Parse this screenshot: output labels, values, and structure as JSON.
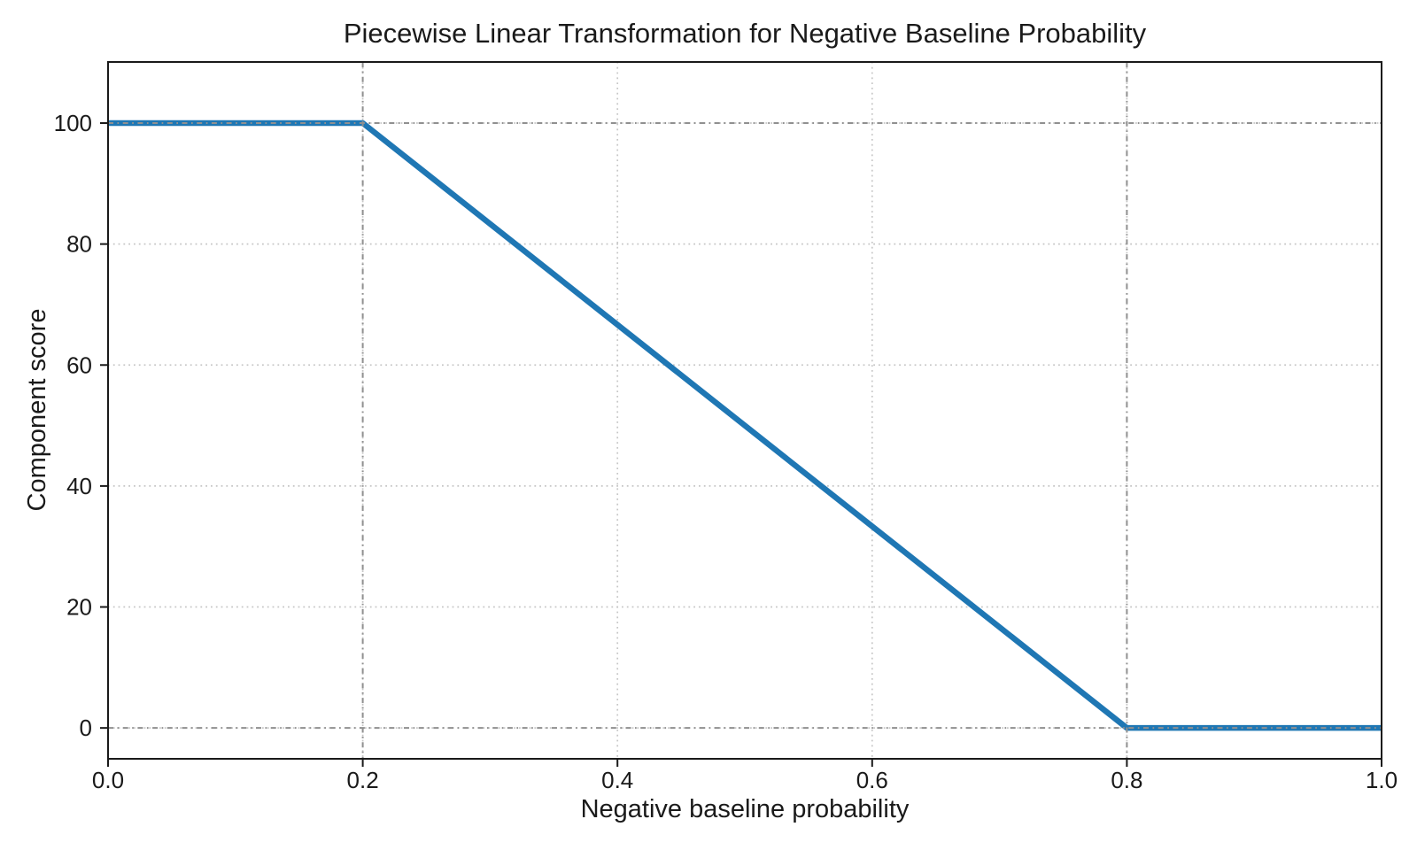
{
  "figure": {
    "background_color": "#ffffff"
  },
  "chart_data": {
    "type": "line",
    "title": "Piecewise Linear Transformation for Negative Baseline Probability",
    "xlabel": "Negative baseline probability",
    "ylabel": "Component score",
    "xlim": [
      0.0,
      1.0
    ],
    "ylim": [
      -5.1,
      110.1
    ],
    "x_ticks": {
      "values": [
        0.0,
        0.2,
        0.4,
        0.6,
        0.8,
        1.0
      ],
      "labels": [
        "0.0",
        "0.2",
        "0.4",
        "0.6",
        "0.8",
        "1.0"
      ]
    },
    "y_ticks": {
      "values": [
        0,
        20,
        40,
        60,
        80,
        100
      ],
      "labels": [
        "0",
        "20",
        "40",
        "60",
        "80",
        "100"
      ]
    },
    "grid": {
      "show": true,
      "style": "dotted",
      "color": "#c6c6c6"
    },
    "reference_lines": {
      "style": "dash-dot",
      "color": "#909090",
      "vertical_x": [
        0.2,
        0.8
      ],
      "horizontal_y": [
        0,
        100
      ]
    },
    "series": [
      {
        "name": "component_score",
        "color": "#1f77b4",
        "line_width": 6.5,
        "points": [
          [
            0.0,
            100
          ],
          [
            0.2,
            100
          ],
          [
            0.8,
            0
          ],
          [
            1.0,
            0
          ]
        ]
      }
    ],
    "spine_color": "#1a1a1a",
    "tick_label_color": "#1a1a1a"
  }
}
